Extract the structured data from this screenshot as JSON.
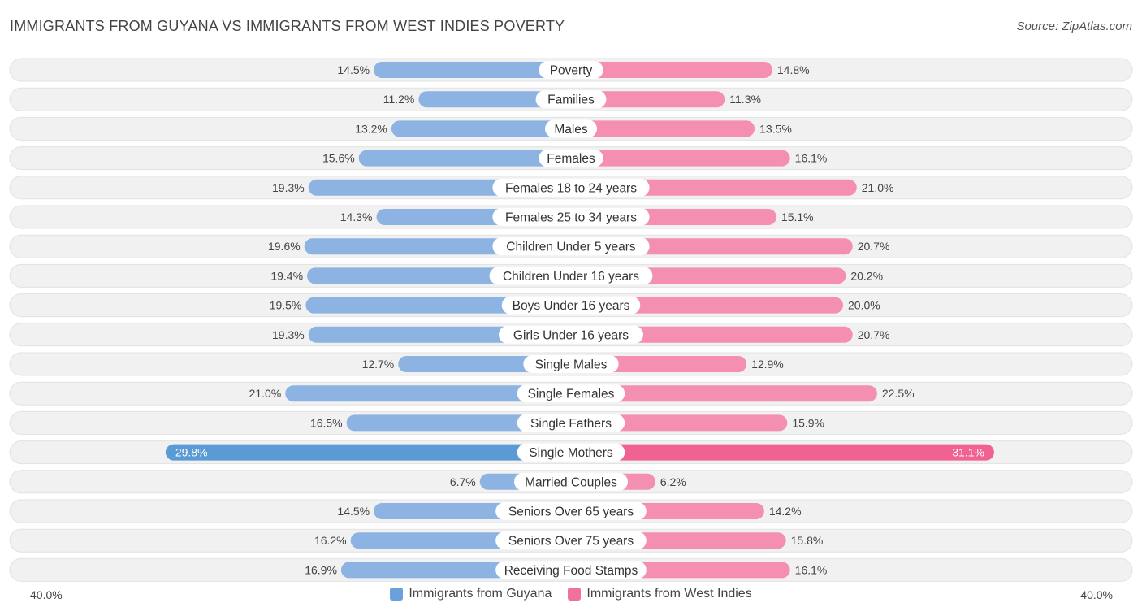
{
  "title": "IMMIGRANTS FROM GUYANA VS IMMIGRANTS FROM WEST INDIES POVERTY",
  "source": "Source: ZipAtlas.com",
  "axis": {
    "left_label": "40.0%",
    "right_label": "40.0%"
  },
  "colors": {
    "left_bar": "#8db3e2",
    "left_bar_strong": "#5b9bd5",
    "right_bar": "#f48fb1",
    "right_bar_strong": "#f06292",
    "row_bg": "#f1f1f1"
  },
  "legend": {
    "left": "Immigrants from Guyana",
    "right": "Immigrants from West Indies",
    "left_color": "#6aa0dc",
    "right_color": "#f0719b"
  },
  "chart_data": {
    "type": "bar",
    "orientation": "horizontal-diverging",
    "title": "IMMIGRANTS FROM GUYANA VS IMMIGRANTS FROM WEST INDIES POVERTY",
    "xlim": [
      0,
      40
    ],
    "categories": [
      "Poverty",
      "Families",
      "Males",
      "Females",
      "Females 18 to 24 years",
      "Females 25 to 34 years",
      "Children Under 5 years",
      "Children Under 16 years",
      "Boys Under 16 years",
      "Girls Under 16 years",
      "Single Males",
      "Single Females",
      "Single Fathers",
      "Single Mothers",
      "Married Couples",
      "Seniors Over 65 years",
      "Seniors Over 75 years",
      "Receiving Food Stamps"
    ],
    "series": [
      {
        "name": "Immigrants from Guyana",
        "values": [
          14.5,
          11.2,
          13.2,
          15.6,
          19.3,
          14.3,
          19.6,
          19.4,
          19.5,
          19.3,
          12.7,
          21.0,
          16.5,
          29.8,
          6.7,
          14.5,
          16.2,
          16.9
        ],
        "labels": [
          "14.5%",
          "11.2%",
          "13.2%",
          "15.6%",
          "19.3%",
          "14.3%",
          "19.6%",
          "19.4%",
          "19.5%",
          "19.3%",
          "12.7%",
          "21.0%",
          "16.5%",
          "29.8%",
          "6.7%",
          "14.5%",
          "16.2%",
          "16.9%"
        ]
      },
      {
        "name": "Immigrants from West Indies",
        "values": [
          14.8,
          11.3,
          13.5,
          16.1,
          21.0,
          15.1,
          20.7,
          20.2,
          20.0,
          20.7,
          12.9,
          22.5,
          15.9,
          31.1,
          6.2,
          14.2,
          15.8,
          16.1
        ],
        "labels": [
          "14.8%",
          "11.3%",
          "13.5%",
          "16.1%",
          "21.0%",
          "15.1%",
          "20.7%",
          "20.2%",
          "20.0%",
          "20.7%",
          "12.9%",
          "22.5%",
          "15.9%",
          "31.1%",
          "6.2%",
          "14.2%",
          "15.8%",
          "16.1%"
        ]
      }
    ],
    "legend_position": "bottom-center"
  }
}
